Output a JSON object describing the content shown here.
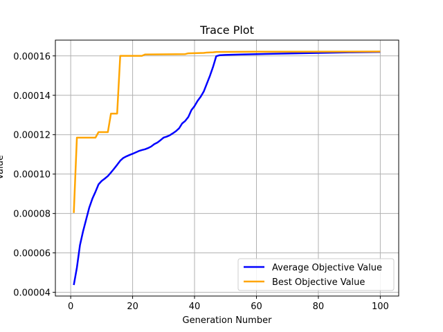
{
  "chart_data": {
    "type": "line",
    "title": "Trace Plot",
    "xlabel": "Generation Number",
    "ylabel": "Value",
    "xlim": [
      -4.95,
      105.95
    ],
    "ylim": [
      3.81e-05,
      0.000168
    ],
    "x_ticks": [
      0,
      20,
      40,
      60,
      80,
      100
    ],
    "x_tick_labels": [
      "0",
      "20",
      "40",
      "60",
      "80",
      "100"
    ],
    "y_ticks": [
      4e-05,
      6e-05,
      8e-05,
      0.0001,
      0.00012,
      0.00014,
      0.00016
    ],
    "y_tick_labels": [
      "0.00004",
      "0.00006",
      "0.00008",
      "0.00010",
      "0.00012",
      "0.00014",
      "0.00016"
    ],
    "grid": true,
    "legend_position": "lower-right",
    "series": [
      {
        "name": "Average Objective Value",
        "color": "#0000ff",
        "points": [
          [
            1,
            4.37e-05
          ],
          [
            2,
            5.25e-05
          ],
          [
            3,
            6.4e-05
          ],
          [
            4,
            7.1e-05
          ],
          [
            5,
            7.7e-05
          ],
          [
            6,
            8.3e-05
          ],
          [
            7,
            8.75e-05
          ],
          [
            8,
            9.1e-05
          ],
          [
            9,
            9.48e-05
          ],
          [
            10,
            9.65e-05
          ],
          [
            11,
            9.77e-05
          ],
          [
            12,
            9.9e-05
          ],
          [
            13,
            0.0001008
          ],
          [
            14,
            0.0001027
          ],
          [
            15,
            0.0001047
          ],
          [
            16,
            0.0001068
          ],
          [
            17,
            0.0001082
          ],
          [
            18,
            0.000109
          ],
          [
            19,
            0.0001097
          ],
          [
            20,
            0.0001103
          ],
          [
            21,
            0.000111
          ],
          [
            22,
            0.0001117
          ],
          [
            23,
            0.0001122
          ],
          [
            24,
            0.0001126
          ],
          [
            25,
            0.0001132
          ],
          [
            26,
            0.000114
          ],
          [
            27,
            0.0001152
          ],
          [
            28,
            0.000116
          ],
          [
            29,
            0.0001172
          ],
          [
            30,
            0.0001185
          ],
          [
            31,
            0.000119
          ],
          [
            32,
            0.0001197
          ],
          [
            33,
            0.0001207
          ],
          [
            34,
            0.0001218
          ],
          [
            35,
            0.0001232
          ],
          [
            36,
            0.0001257
          ],
          [
            37,
            0.000127
          ],
          [
            38,
            0.000129
          ],
          [
            39,
            0.0001325
          ],
          [
            40,
            0.0001345
          ],
          [
            41,
            0.0001372
          ],
          [
            42,
            0.0001393
          ],
          [
            43,
            0.000142
          ],
          [
            44,
            0.000146
          ],
          [
            45,
            0.00015
          ],
          [
            46,
            0.0001545
          ],
          [
            47,
            0.0001598
          ],
          [
            48,
            0.0001603
          ],
          [
            50,
            0.0001605
          ],
          [
            55,
            0.0001607
          ],
          [
            60,
            0.0001609
          ],
          [
            70,
            0.0001612
          ],
          [
            80,
            0.0001615
          ],
          [
            90,
            0.0001618
          ],
          [
            100,
            0.000162
          ]
        ]
      },
      {
        "name": "Best Objective Value",
        "color": "#ffa500",
        "points": [
          [
            1,
            8.03e-05
          ],
          [
            2,
            0.0001185
          ],
          [
            8,
            0.0001185
          ],
          [
            9,
            0.0001213
          ],
          [
            12,
            0.0001213
          ],
          [
            13,
            0.0001307
          ],
          [
            15,
            0.0001307
          ],
          [
            16,
            0.00016
          ],
          [
            23,
            0.00016
          ],
          [
            24,
            0.0001607
          ],
          [
            37,
            0.0001609
          ],
          [
            38,
            0.0001613
          ],
          [
            43,
            0.0001615
          ],
          [
            44,
            0.0001617
          ],
          [
            46,
            0.0001618
          ],
          [
            47,
            0.000162
          ],
          [
            60,
            0.0001621
          ],
          [
            100,
            0.0001622
          ]
        ]
      }
    ]
  }
}
